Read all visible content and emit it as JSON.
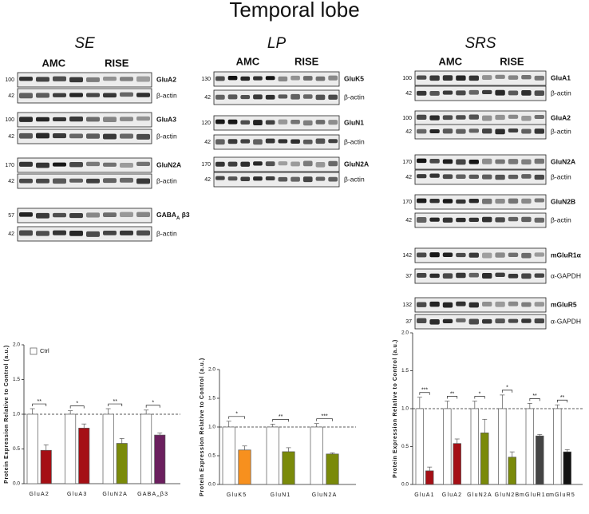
{
  "title": "Temporal lobe",
  "blots": [
    {
      "heading": "SE",
      "groups": [
        "AMC",
        "RISE"
      ],
      "rows": [
        {
          "mw": "100",
          "label": "GluA2"
        },
        {
          "mw": "42",
          "label": "β-actin"
        },
        {
          "mw": "100",
          "label": "GluA3"
        },
        {
          "mw": "42",
          "label": "β-actin"
        },
        {
          "mw": "170",
          "label": "GluN2A"
        },
        {
          "mw": "42",
          "label": "β-actin"
        },
        {
          "mw": "57",
          "label": [
            "GABA",
            "A",
            " β3"
          ]
        },
        {
          "mw": "42",
          "label": "β-actin"
        }
      ]
    },
    {
      "heading": "LP",
      "groups": [
        "AMC",
        "RISE"
      ],
      "rows": [
        {
          "mw": "130",
          "label": "GluK5"
        },
        {
          "mw": "42",
          "label": "β-actin"
        },
        {
          "mw": "120",
          "label": "GluN1"
        },
        {
          "mw": "42",
          "label": "β-actin"
        },
        {
          "mw": "170",
          "label": "GluN2A"
        },
        {
          "mw": "42",
          "label": "β-actin"
        }
      ]
    },
    {
      "heading": "SRS",
      "groups": [
        "AMC",
        "RISE"
      ],
      "rows": [
        {
          "mw": "100",
          "label": "GluA1"
        },
        {
          "mw": "42",
          "label": "β-actin"
        },
        {
          "mw": "100",
          "label": "GluA2"
        },
        {
          "mw": "42",
          "label": "β-actin"
        },
        {
          "mw": "170",
          "label": "GluN2A"
        },
        {
          "mw": "42",
          "label": "β-actin"
        },
        {
          "mw": "170",
          "label": "GluN2B"
        },
        {
          "mw": "42",
          "label": "β-actin"
        },
        {
          "mw": "142",
          "label": "mGluR1α"
        },
        {
          "mw": "37",
          "label": "α-GAPDH"
        },
        {
          "mw": "132",
          "label": "mGluR5"
        },
        {
          "mw": "37",
          "label": "α-GAPDH"
        }
      ]
    }
  ],
  "chart_data": [
    {
      "type": "bar",
      "ylabel": "Protein Expression Relative to Control (a.u.)",
      "categories": [
        "GluA2",
        "GluA3",
        "GluN2A",
        [
          "GABA",
          "A",
          "β3"
        ]
      ],
      "series": [
        {
          "name": "Ctrl",
          "color": "#ffffff",
          "values": [
            1.0,
            1.0,
            1.0,
            1.0
          ],
          "errors": [
            0.08,
            0.05,
            0.08,
            0.06
          ]
        },
        {
          "colors": [
            "#a50f15",
            "#a50f15",
            "#7a8a0a",
            "#6b1f5e"
          ],
          "values": [
            0.48,
            0.8,
            0.58,
            0.7
          ],
          "errors": [
            0.08,
            0.06,
            0.07,
            0.03
          ]
        }
      ],
      "annotations": [
        "**",
        "*",
        "**",
        "*"
      ],
      "hline": 1.0,
      "legend": "upper-left",
      "ylim": [
        0,
        2.0
      ],
      "yticks": [
        {
          "value": 0,
          "label": "0.0"
        },
        {
          "value": 0.5,
          "label": "0.5"
        },
        {
          "value": 1.0,
          "label": "1.0"
        },
        {
          "value": 1.5,
          "label": "1.5"
        },
        {
          "value": 2.0,
          "label": "2.0"
        }
      ]
    },
    {
      "type": "bar",
      "ylabel": "Protein Expression Relative to Control (a.u.)",
      "categories": [
        "GluK5",
        "GluN1",
        "GluN2A"
      ],
      "series": [
        {
          "name": "Ctrl",
          "color": "#ffffff",
          "values": [
            1.0,
            1.0,
            1.0
          ],
          "errors": [
            0.1,
            0.05,
            0.06
          ]
        },
        {
          "colors": [
            "#f7901e",
            "#7a8a0a",
            "#7a8a0a"
          ],
          "values": [
            0.6,
            0.57,
            0.53
          ],
          "errors": [
            0.07,
            0.07,
            0.02
          ]
        }
      ],
      "annotations": [
        "*",
        "**",
        "***"
      ],
      "hline": 1.0,
      "ylim": [
        0,
        2.0
      ],
      "yticks": [
        {
          "value": 0,
          "label": "0.0"
        },
        {
          "value": 0.5,
          "label": "0.5"
        },
        {
          "value": 1.0,
          "label": "1.0"
        },
        {
          "value": 1.5,
          "label": "1.5"
        },
        {
          "value": 2.0,
          "label": "2.0"
        }
      ]
    },
    {
      "type": "bar",
      "ylabel": "Protein Expression Relative to Control (a.u.)",
      "categories": [
        "GluA1",
        "GluA2",
        "GluN2A",
        "GluN2B",
        "mGluR1α",
        "mGluR5"
      ],
      "series": [
        {
          "name": "Ctrl",
          "color": "#ffffff",
          "values": [
            1.0,
            1.0,
            1.0,
            1.0,
            1.0,
            1.0
          ],
          "errors": [
            0.15,
            0.1,
            0.1,
            0.18,
            0.07,
            0.05
          ]
        },
        {
          "colors": [
            "#a50f15",
            "#a50f15",
            "#7a8a0a",
            "#7a8a0a",
            "#444444",
            "#111111"
          ],
          "values": [
            0.18,
            0.54,
            0.68,
            0.36,
            0.64,
            0.43
          ],
          "errors": [
            0.05,
            0.06,
            0.18,
            0.07,
            0.02,
            0.03
          ]
        }
      ],
      "annotations": [
        "***",
        "**",
        "*",
        "*",
        "**",
        "**"
      ],
      "hline": 1.0,
      "ylim": [
        0,
        2.0
      ],
      "yticks": [
        {
          "value": 0,
          "label": "0.0"
        },
        {
          "value": 0.5,
          "label": "0.5"
        },
        {
          "value": 1.0,
          "label": "1.0"
        },
        {
          "value": 1.5,
          "label": "1.5"
        },
        {
          "value": 2.0,
          "label": "2.0"
        }
      ]
    }
  ]
}
